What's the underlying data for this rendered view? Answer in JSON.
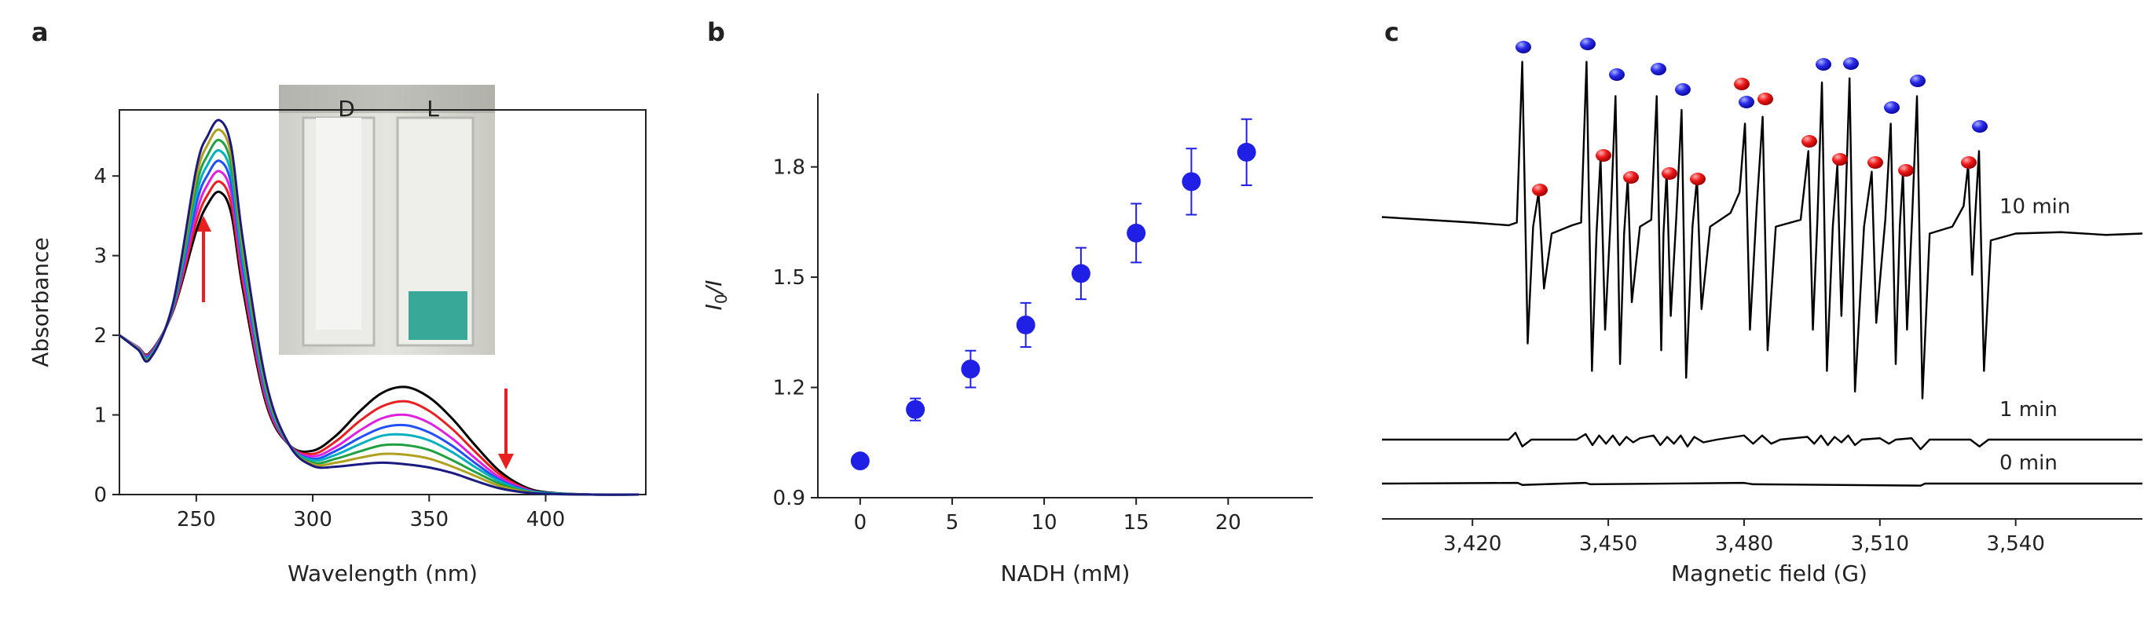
{
  "chart_data": [
    {
      "type": "line",
      "panel_label": "a",
      "xlabel": "Wavelength (nm)",
      "ylabel": "Absorbance",
      "inset_labels": [
        "D",
        "L"
      ],
      "x": [
        217,
        225,
        230,
        240,
        250,
        255,
        260,
        265,
        270,
        280,
        290,
        300,
        310,
        320,
        330,
        340,
        350,
        360,
        370,
        380,
        390,
        400,
        420,
        440
      ],
      "series": [
        {
          "color": "#000000",
          "values": [
            2.0,
            1.85,
            1.78,
            2.3,
            3.31,
            3.65,
            3.8,
            3.53,
            2.58,
            1.14,
            0.62,
            0.55,
            0.74,
            1.04,
            1.28,
            1.35,
            1.22,
            0.95,
            0.61,
            0.3,
            0.11,
            0.03,
            0,
            0
          ]
        },
        {
          "color": "#e8201f",
          "values": [
            2.0,
            1.85,
            1.77,
            2.31,
            3.42,
            3.77,
            3.93,
            3.65,
            2.67,
            1.18,
            0.62,
            0.51,
            0.67,
            0.92,
            1.11,
            1.17,
            1.05,
            0.82,
            0.53,
            0.26,
            0.09,
            0.02,
            0,
            0
          ]
        },
        {
          "color": "#e020e0",
          "values": [
            2.0,
            1.85,
            1.76,
            2.33,
            3.53,
            3.9,
            4.06,
            3.78,
            2.76,
            1.22,
            0.62,
            0.48,
            0.6,
            0.8,
            0.96,
            1.0,
            0.9,
            0.7,
            0.45,
            0.22,
            0.08,
            0.02,
            0,
            0
          ]
        },
        {
          "color": "#2050ff",
          "values": [
            2.0,
            1.84,
            1.75,
            2.34,
            3.65,
            4.02,
            4.19,
            3.9,
            2.85,
            1.26,
            0.62,
            0.45,
            0.55,
            0.71,
            0.84,
            0.87,
            0.78,
            0.61,
            0.39,
            0.19,
            0.07,
            0.02,
            0,
            0
          ]
        },
        {
          "color": "#00b0c0",
          "values": [
            2.0,
            1.84,
            1.73,
            2.36,
            3.76,
            4.15,
            4.32,
            4.02,
            2.94,
            1.3,
            0.62,
            0.43,
            0.5,
            0.63,
            0.74,
            0.75,
            0.68,
            0.53,
            0.34,
            0.17,
            0.06,
            0.02,
            0,
            0
          ]
        },
        {
          "color": "#20a040",
          "values": [
            2.0,
            1.83,
            1.72,
            2.37,
            3.87,
            4.27,
            4.45,
            4.14,
            3.03,
            1.34,
            0.62,
            0.4,
            0.45,
            0.54,
            0.62,
            0.62,
            0.56,
            0.43,
            0.28,
            0.14,
            0.05,
            0.01,
            0,
            0
          ]
        },
        {
          "color": "#b0a020",
          "values": [
            2.0,
            1.83,
            1.71,
            2.39,
            3.98,
            4.4,
            4.58,
            4.26,
            3.11,
            1.37,
            0.62,
            0.38,
            0.4,
            0.46,
            0.51,
            0.5,
            0.45,
            0.35,
            0.23,
            0.11,
            0.04,
            0.01,
            0,
            0
          ]
        },
        {
          "color": "#1a1a80",
          "values": [
            2.0,
            1.82,
            1.7,
            2.4,
            4.09,
            4.51,
            4.7,
            4.37,
            3.2,
            1.41,
            0.62,
            0.36,
            0.35,
            0.38,
            0.4,
            0.38,
            0.34,
            0.27,
            0.17,
            0.08,
            0.03,
            0.01,
            0,
            0
          ]
        }
      ],
      "xlim": [
        217,
        443
      ],
      "ylim": [
        0,
        4.83
      ],
      "xticks": [
        250,
        300,
        350,
        400
      ],
      "yticks": [
        0,
        1,
        2,
        3,
        4
      ],
      "smooth": true
    },
    {
      "type": "scatter",
      "panel_label": "b",
      "xlabel": "NADH (mM)",
      "ylabel": [
        "I",
        "0",
        "/I"
      ],
      "x": [
        0,
        3,
        6,
        9,
        12,
        15,
        18,
        21
      ],
      "values": [
        1.0,
        1.14,
        1.25,
        1.37,
        1.51,
        1.62,
        1.76,
        1.84
      ],
      "errors": [
        0,
        0.03,
        0.05,
        0.06,
        0.07,
        0.08,
        0.09,
        0.09
      ],
      "color": "#1f1fe6",
      "xlim": [
        -2.3,
        24.6
      ],
      "ylim": [
        0.9,
        2.0
      ],
      "xticks": [
        0,
        5,
        10,
        15,
        20
      ],
      "yticks": [
        0.9,
        1.2,
        1.5,
        1.8
      ]
    },
    {
      "type": "line",
      "panel_label": "c",
      "xlabel": "Magnetic field (G)",
      "series": [
        {
          "name": "10 min",
          "color": "#000000",
          "x": [
            3400,
            3410,
            3420,
            3428,
            3429.8,
            3431.0,
            3432.2,
            3433.4,
            3434.6,
            3435.8,
            3437.5,
            3442,
            3444.0,
            3445.2,
            3446.4,
            3447.4,
            3448.3,
            3449.3,
            3450.5,
            3451.6,
            3452.6,
            3453.5,
            3454.3,
            3455.2,
            3457,
            3459.5,
            3460.7,
            3461.7,
            3462.2,
            3462.9,
            3463.8,
            3465,
            3466.2,
            3467.2,
            3468.6,
            3469.6,
            3470.6,
            3472.5,
            3477,
            3479,
            3480.2,
            3481.3,
            3482.8,
            3484.1,
            3485.2,
            3487,
            3492.5,
            3494.2,
            3495.2,
            3496.2,
            3497.2,
            3498.3,
            3499.6,
            3500.6,
            3501.5,
            3502.3,
            3503.3,
            3504.5,
            3506.5,
            3508.2,
            3509.2,
            3511.2,
            3512.4,
            3513.5,
            3514.4,
            3515.1,
            3516,
            3517.1,
            3518.2,
            3519.4,
            3521,
            3526,
            3528.5,
            3529.5,
            3530.4,
            3531,
            3531.9,
            3533,
            3534.5,
            3540,
            3550,
            3560,
            3568
          ],
          "values": [
            20.2,
            20.0,
            19.8,
            19.6,
            19.8,
            31.5,
            11,
            19.5,
            22,
            15,
            19,
            19.6,
            19.8,
            31.5,
            9,
            19,
            24.5,
            12,
            20,
            29,
            9.5,
            19,
            23,
            14,
            19.5,
            20,
            29,
            10.5,
            19,
            23.5,
            13,
            20,
            28,
            8.5,
            19.5,
            23,
            13.5,
            19.5,
            20.5,
            22,
            27,
            12,
            21,
            27.5,
            10.5,
            19.5,
            20,
            25,
            12,
            20,
            30,
            9,
            19.5,
            24,
            13,
            20,
            30.3,
            7.5,
            19.5,
            23.5,
            12.5,
            20,
            27,
            9.5,
            19.5,
            23.5,
            12,
            20,
            29,
            7,
            19,
            19.5,
            21,
            24,
            16,
            20,
            25,
            9,
            18.5,
            19,
            19.1,
            18.9,
            19.0
          ]
        },
        {
          "name": "1 min",
          "color": "#000000",
          "x": [
            3400,
            3428,
            3429.5,
            3431,
            3433,
            3443,
            3445,
            3446.5,
            3448,
            3449.5,
            3451,
            3452.5,
            3454,
            3455.5,
            3457,
            3460,
            3461.5,
            3463,
            3464.5,
            3466,
            3467.5,
            3469,
            3471,
            3474,
            3480,
            3482,
            3484,
            3486,
            3488,
            3494,
            3495.5,
            3497,
            3498.5,
            3500,
            3501.5,
            3503,
            3504.5,
            3506,
            3510,
            3512,
            3513.5,
            3517,
            3519,
            3521,
            3530,
            3532,
            3534,
            3568
          ],
          "values": [
            4.0,
            4.0,
            4.5,
            3.5,
            4.0,
            4.0,
            4.4,
            3.6,
            4.3,
            3.7,
            4.3,
            3.6,
            4.2,
            3.8,
            4.1,
            4.3,
            3.6,
            4.2,
            3.7,
            4.3,
            3.5,
            4.2,
            3.8,
            4.0,
            4.3,
            3.7,
            4.3,
            3.7,
            4.0,
            4.2,
            3.7,
            4.3,
            3.6,
            4.2,
            3.8,
            4.3,
            3.6,
            4.0,
            4.1,
            3.7,
            4.0,
            4.1,
            3.3,
            4.0,
            4.0,
            3.5,
            4.0,
            4.0
          ]
        },
        {
          "name": "0 min",
          "color": "#000000",
          "x": [
            3400,
            3430,
            3431,
            3445,
            3446,
            3480,
            3482,
            3519,
            3520,
            3568
          ],
          "values": [
            0.8,
            0.85,
            0.7,
            0.85,
            0.75,
            0.85,
            0.75,
            0.65,
            0.8,
            0.8
          ]
        }
      ],
      "xlim": [
        3400,
        3568
      ],
      "ylim": [
        0,
        33
      ],
      "xticks": [
        {
          "value": 3420,
          "label": "3,420"
        },
        {
          "value": 3450,
          "label": "3,450"
        },
        {
          "value": 3480,
          "label": "3,480"
        },
        {
          "value": 3510,
          "label": "3,510"
        },
        {
          "value": 3540,
          "label": "3,540"
        }
      ]
    }
  ]
}
